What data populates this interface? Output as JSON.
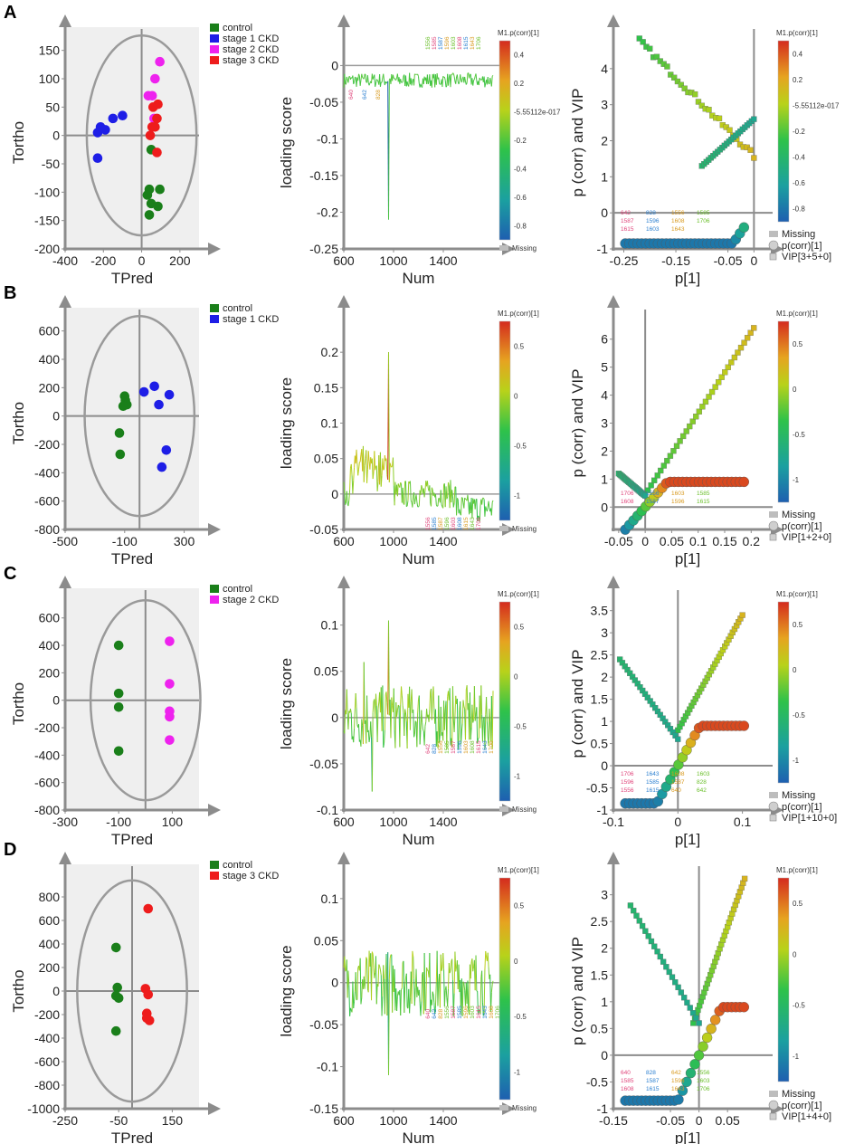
{
  "panels": [
    "A",
    "B",
    "C",
    "D"
  ],
  "common": {
    "score_xlabel": "TPred",
    "score_ylabel": "Tortho",
    "loading_xlabel": "Num",
    "loading_ylabel": "loading score",
    "vip_xlabel": "p[1]",
    "vip_ylabel": "p (corr) and VIP",
    "cbar_title": "M1.p(corr)[1]",
    "missing_label": "Missing",
    "pcorr_legend": "p(corr)[1]"
  },
  "colors": {
    "control": "#1a7f1a",
    "stage1": "#1e1ee6",
    "stage2": "#ee22ee",
    "stage3": "#ee1c1c",
    "ellipse": "#9a9a9a",
    "plot_bg": "#efefef"
  },
  "chart_data": [
    {
      "panel": "A",
      "kind": "score",
      "type": "scatter",
      "xlim": [
        -400,
        300
      ],
      "ylim": [
        -200,
        175
      ],
      "xticks": [
        -400,
        -200,
        0,
        200
      ],
      "yticks": [
        -200,
        -150,
        -100,
        -50,
        0,
        50,
        100,
        150
      ],
      "legend": [
        "control",
        "stage 1 CKD",
        "stage 2 CKD",
        "stage 3 CKD"
      ],
      "series": [
        {
          "name": "control",
          "color": "control",
          "points": [
            [
              50,
              -25
            ],
            [
              40,
              -95
            ],
            [
              30,
              -105
            ],
            [
              50,
              -120
            ],
            [
              40,
              -140
            ],
            [
              85,
              -125
            ],
            [
              95,
              -95
            ]
          ]
        },
        {
          "name": "stage 1 CKD",
          "color": "stage1",
          "points": [
            [
              -230,
              5
            ],
            [
              -215,
              15
            ],
            [
              -190,
              10
            ],
            [
              -150,
              30
            ],
            [
              -100,
              35
            ],
            [
              -230,
              -40
            ]
          ]
        },
        {
          "name": "stage 2 CKD",
          "color": "stage2",
          "points": [
            [
              95,
              130
            ],
            [
              70,
              100
            ],
            [
              55,
              70
            ],
            [
              35,
              70
            ],
            [
              65,
              30
            ]
          ]
        },
        {
          "name": "stage 3 CKD",
          "color": "stage3",
          "points": [
            [
              60,
              50
            ],
            [
              85,
              55
            ],
            [
              80,
              30
            ],
            [
              70,
              15
            ],
            [
              55,
              15
            ],
            [
              45,
              0
            ],
            [
              80,
              -30
            ]
          ]
        }
      ]
    },
    {
      "panel": "A",
      "kind": "loading",
      "type": "line",
      "xlim": [
        600,
        1800
      ],
      "ylim": [
        -0.25,
        0.04
      ],
      "xticks": [
        600,
        1000,
        1400
      ],
      "yticks": [
        -0.25,
        -0.2,
        -0.15,
        -0.1,
        -0.05,
        0
      ],
      "cbar_ticks": [
        "0.4",
        "0.2",
        "-5.55112e-017",
        "-0.2",
        "-0.4",
        "-0.6",
        "-0.8"
      ],
      "cbar_range": [
        -0.8,
        0.55
      ],
      "annotations": [
        "640",
        "642",
        "828",
        "1556",
        "1585",
        "1587",
        "1596",
        "1603",
        "1608",
        "1615",
        "1643",
        "1706"
      ]
    },
    {
      "panel": "A",
      "kind": "vip",
      "type": "scatter",
      "xlim": [
        -0.27,
        0.015
      ],
      "ylim": [
        -1,
        4.9
      ],
      "xticks": [
        -0.25,
        -0.15,
        -0.05,
        0
      ],
      "yticks": [
        -1,
        0,
        1,
        2,
        3,
        4
      ],
      "cbar_ticks": [
        "0.4",
        "0.2",
        "-5.55112e-017",
        "-0.2",
        "-0.4",
        "-0.6",
        "-0.8"
      ],
      "cbar_range": [
        -0.8,
        0.55
      ],
      "legend": [
        "Missing",
        "p(corr)[1]",
        "VIP[3+5+0]"
      ],
      "annotations": [
        "642",
        "828",
        "1556",
        "1585",
        "1587",
        "1596",
        "1608",
        "1706",
        "1615",
        "1603",
        "1643"
      ]
    },
    {
      "panel": "B",
      "kind": "score",
      "type": "scatter",
      "xlim": [
        -500,
        400
      ],
      "ylim": [
        -800,
        700
      ],
      "xticks": [
        -500,
        -100,
        300
      ],
      "yticks": [
        -800,
        -600,
        -400,
        -200,
        0,
        200,
        400,
        600
      ],
      "legend": [
        "control",
        "stage 1 CKD"
      ],
      "series": [
        {
          "name": "control",
          "color": "control",
          "points": [
            [
              -100,
              140
            ],
            [
              -95,
              110
            ],
            [
              -85,
              80
            ],
            [
              -110,
              70
            ],
            [
              -135,
              -120
            ],
            [
              -130,
              -270
            ]
          ]
        },
        {
          "name": "stage 1 CKD",
          "color": "stage1",
          "points": [
            [
              100,
              210
            ],
            [
              30,
              170
            ],
            [
              200,
              150
            ],
            [
              130,
              80
            ],
            [
              180,
              -240
            ],
            [
              150,
              -360
            ]
          ]
        }
      ]
    },
    {
      "panel": "B",
      "kind": "loading",
      "type": "line",
      "xlim": [
        600,
        1800
      ],
      "ylim": [
        -0.05,
        0.25
      ],
      "xticks": [
        600,
        1000,
        1400
      ],
      "yticks": [
        -0.05,
        0,
        0.05,
        0.1,
        0.15,
        0.2
      ],
      "cbar_ticks": [
        "0.5",
        "0",
        "-0.5",
        "-1"
      ],
      "cbar_range": [
        -1,
        1
      ],
      "annotations": [
        "1556",
        "1585",
        "1587",
        "1596",
        "1603",
        "1608",
        "1615",
        "1643",
        "1706"
      ]
    },
    {
      "panel": "B",
      "kind": "vip",
      "type": "scatter",
      "xlim": [
        -0.06,
        0.22
      ],
      "ylim": [
        -0.8,
        6.8
      ],
      "xticks": [
        -0.05,
        0,
        0.05,
        0.1,
        0.15,
        0.2
      ],
      "xtick_labels": [
        "-0.05",
        "0",
        "0.05",
        "0.1",
        "0.15",
        "0.2"
      ],
      "yticks": [
        0,
        1,
        2,
        3,
        4,
        5,
        6
      ],
      "cbar_ticks": [
        "0.5",
        "0",
        "-0.5",
        "-1"
      ],
      "cbar_range": [
        -1,
        1
      ],
      "legend": [
        "Missing",
        "p(corr)[1]",
        "VIP[1+2+0]"
      ],
      "annotations": [
        "1706",
        "1556",
        "1603",
        "1585",
        "1608",
        "1587",
        "1596",
        "1615"
      ]
    },
    {
      "panel": "C",
      "kind": "score",
      "type": "scatter",
      "xlim": [
        -300,
        200
      ],
      "ylim": [
        -800,
        750
      ],
      "xticks": [
        -300,
        -100,
        100
      ],
      "yticks": [
        -800,
        -600,
        -400,
        -200,
        0,
        200,
        400,
        600
      ],
      "legend": [
        "control",
        "stage 2 CKD"
      ],
      "series": [
        {
          "name": "control",
          "color": "control",
          "points": [
            [
              -100,
              400
            ],
            [
              -100,
              50
            ],
            [
              -100,
              -50
            ],
            [
              -100,
              -370
            ]
          ]
        },
        {
          "name": "stage 2 CKD",
          "color": "stage2",
          "points": [
            [
              90,
              430
            ],
            [
              90,
              120
            ],
            [
              90,
              -80
            ],
            [
              90,
              -120
            ],
            [
              90,
              -290
            ]
          ]
        }
      ]
    },
    {
      "panel": "C",
      "kind": "loading",
      "type": "line",
      "xlim": [
        600,
        1800
      ],
      "ylim": [
        -0.1,
        0.13
      ],
      "xticks": [
        600,
        1000,
        1400
      ],
      "yticks": [
        -0.1,
        -0.05,
        0,
        0.05,
        0.1
      ],
      "cbar_ticks": [
        "0.5",
        "0",
        "-0.5",
        "-1"
      ],
      "cbar_range": [
        -1,
        1
      ],
      "annotations": [
        "642",
        "828",
        "1556",
        "1585",
        "1587",
        "1596",
        "1603",
        "1608",
        "1615",
        "1643",
        "1706"
      ]
    },
    {
      "panel": "C",
      "kind": "vip",
      "type": "scatter",
      "xlim": [
        -0.1,
        0.13
      ],
      "ylim": [
        -1,
        3.8
      ],
      "xticks": [
        -0.1,
        0,
        0.1
      ],
      "yticks": [
        -1,
        -0.5,
        0,
        0.5,
        1,
        1.5,
        2,
        2.5,
        3,
        3.5
      ],
      "cbar_ticks": [
        "0.5",
        "0",
        "-0.5",
        "-1"
      ],
      "cbar_range": [
        -1,
        1
      ],
      "legend": [
        "Missing",
        "p(corr)[1]",
        "VIP[1+10+0]"
      ],
      "annotations": [
        "1706",
        "1643",
        "1608",
        "1603",
        "1596",
        "1585",
        "1587",
        "828",
        "1556",
        "1615",
        "640",
        "642"
      ]
    },
    {
      "panel": "D",
      "kind": "score",
      "type": "scatter",
      "xlim": [
        -250,
        250
      ],
      "ylim": [
        -1000,
        1000
      ],
      "xticks": [
        -250,
        -50,
        150
      ],
      "yticks": [
        -1000,
        -800,
        -600,
        -400,
        -200,
        0,
        200,
        400,
        600,
        800
      ],
      "legend": [
        "control",
        "stage 3 CKD"
      ],
      "series": [
        {
          "name": "control",
          "color": "control",
          "points": [
            [
              -60,
              370
            ],
            [
              -55,
              30
            ],
            [
              -60,
              -40
            ],
            [
              -50,
              -60
            ],
            [
              -60,
              -340
            ]
          ]
        },
        {
          "name": "stage 3 CKD",
          "color": "stage3",
          "points": [
            [
              60,
              700
            ],
            [
              50,
              20
            ],
            [
              60,
              -30
            ],
            [
              55,
              -190
            ],
            [
              55,
              -230
            ],
            [
              65,
              -250
            ]
          ]
        }
      ]
    },
    {
      "panel": "D",
      "kind": "loading",
      "type": "line",
      "xlim": [
        600,
        1800
      ],
      "ylim": [
        -0.15,
        0.13
      ],
      "xticks": [
        600,
        1000,
        1400
      ],
      "yticks": [
        -0.15,
        -0.1,
        -0.05,
        0,
        0.05,
        0.1
      ],
      "cbar_ticks": [
        "0.5",
        "0",
        "-0.5",
        "-1"
      ],
      "cbar_range": [
        -1,
        1
      ],
      "annotations": [
        "640",
        "642",
        "828",
        "1556",
        "1587",
        "1585",
        "1596",
        "1603",
        "1615",
        "1643",
        "1608",
        "1706"
      ]
    },
    {
      "panel": "D",
      "kind": "vip",
      "type": "scatter",
      "xlim": [
        -0.15,
        0.11
      ],
      "ylim": [
        -1,
        3.4
      ],
      "xticks": [
        -0.15,
        -0.05,
        0,
        0.05
      ],
      "yticks": [
        -1,
        -0.5,
        0,
        0.5,
        1,
        1.5,
        2,
        2.5,
        3
      ],
      "cbar_ticks": [
        "0.5",
        "0",
        "-0.5",
        "-1"
      ],
      "cbar_range": [
        -1,
        1
      ],
      "legend": [
        "Missing",
        "p(corr)[1]",
        "VIP[1+4+0]"
      ],
      "annotations": [
        "640",
        "828",
        "642",
        "1556",
        "1585",
        "1587",
        "1596",
        "1603",
        "1608",
        "1615",
        "1643",
        "1706"
      ]
    }
  ]
}
